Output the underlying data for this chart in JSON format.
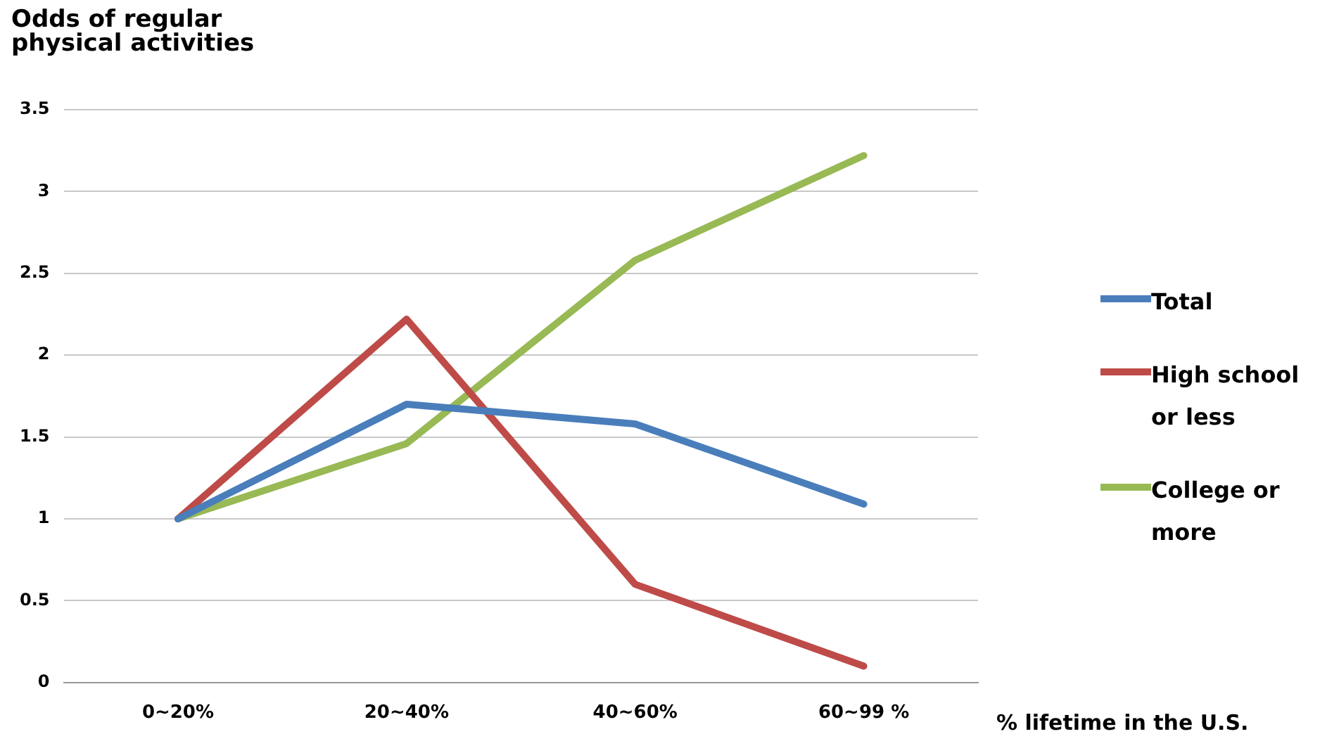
{
  "chart_data": {
    "type": "line",
    "ylabel": "Odds of regular physical activities",
    "xlabel": "% lifetime in the U.S.",
    "categories": [
      "0~20%",
      "20~40%",
      "40~60%",
      "60~99 %"
    ],
    "series": [
      {
        "name": "Total",
        "color": "#4a7ebb",
        "values": [
          1,
          1.7,
          1.58,
          1.09
        ]
      },
      {
        "name": "High school or less",
        "color": "#be4b48",
        "values": [
          1,
          2.22,
          0.6,
          0.1
        ]
      },
      {
        "name": "College or more",
        "color": "#98b954",
        "values": [
          1,
          1.46,
          2.58,
          3.22
        ]
      }
    ],
    "ylim": [
      0,
      3.5
    ],
    "yticks": [
      0,
      0.5,
      1,
      1.5,
      2,
      2.5,
      3,
      3.5
    ],
    "grid": "y",
    "legend": "right",
    "marker": "none",
    "line_style": "solid"
  }
}
